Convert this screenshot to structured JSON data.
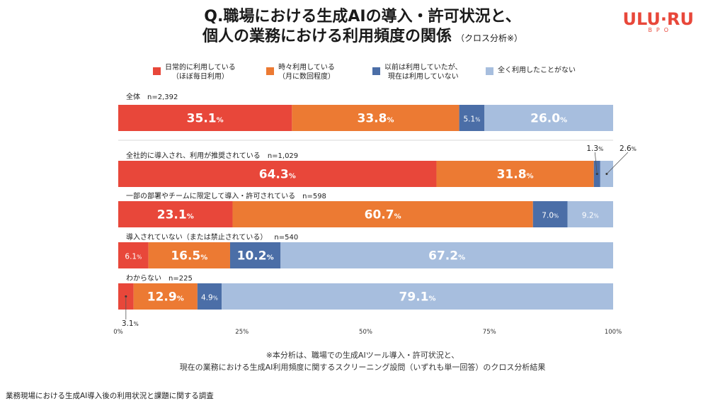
{
  "title": {
    "line1": "Q.職場における生成AIの導入・許可状況と、",
    "line2": "個人の業務における利用頻度の関係",
    "sub": "（クロス分析※）"
  },
  "logo": {
    "text": "ULU·RU",
    "sub": "BPO"
  },
  "note": {
    "line1": "※本分析は、職場での生成AIツール導入・許可状況と、",
    "line2": "現在の業務における生成AI利用頻度に関するスクリーニング設問（いずれも単一回答）のクロス分析結果"
  },
  "footer": "業務現場における生成AI導入後の利用状況と課題に関する調査",
  "chart_data": {
    "type": "bar",
    "orientation": "horizontal-stacked-100",
    "legend_position": "top",
    "series": [
      {
        "name": "日常的に利用している\n（ほぼ毎日利用）",
        "color": "#e8473a"
      },
      {
        "name": "時々利用している\n（月に数回程度）",
        "color": "#ec7a33"
      },
      {
        "name": "以前は利用していたが、\n現在は利用していない",
        "color": "#4b6ea7"
      },
      {
        "name": "全く利用したことがない",
        "color": "#a7bede"
      }
    ],
    "categories": [
      {
        "label": "全体",
        "n": "n=2,392",
        "values": [
          35.1,
          33.8,
          5.1,
          26.0
        ]
      },
      {
        "label": "全社的に導入され、利用が推奨されている",
        "n": "n=1,029",
        "values": [
          64.3,
          31.8,
          1.3,
          2.6
        ]
      },
      {
        "label": "一部の部署やチームに限定して導入・許可されている",
        "n": "n=598",
        "values": [
          23.1,
          60.7,
          7.0,
          9.2
        ]
      },
      {
        "label": "導入されていない（または禁止されている）",
        "n": "n=540",
        "values": [
          6.1,
          16.5,
          10.2,
          67.2
        ]
      },
      {
        "label": "わからない",
        "n": "n=225",
        "values": [
          3.1,
          12.9,
          4.9,
          79.1
        ]
      }
    ],
    "percent_suffix": "%",
    "xticks": [
      "0%",
      "25%",
      "50%",
      "75%",
      "100%"
    ],
    "xlim": [
      0,
      100
    ]
  }
}
